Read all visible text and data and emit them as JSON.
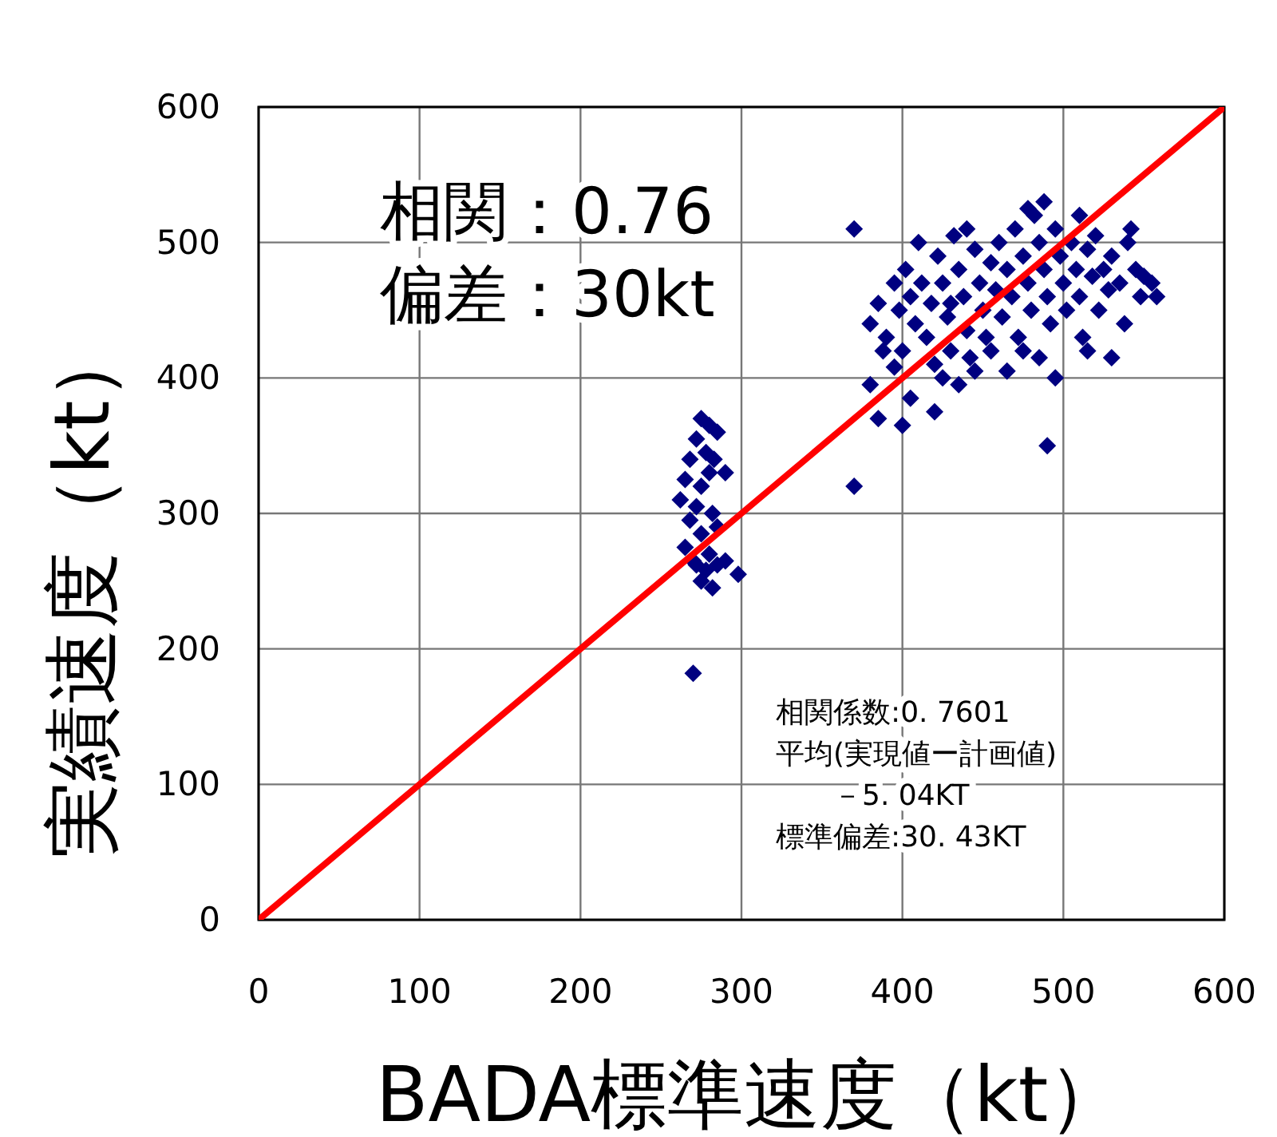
{
  "chart_data": {
    "type": "scatter",
    "xlabel": "BADA標準速度（kt）",
    "ylabel": "実績速度（kt）",
    "xlim": [
      0,
      600
    ],
    "ylim": [
      0,
      600
    ],
    "xticks": [
      0,
      100,
      200,
      300,
      400,
      500,
      600
    ],
    "yticks": [
      0,
      100,
      200,
      300,
      400,
      500,
      600
    ],
    "grid": true,
    "marker": "diamond",
    "annotations": [
      "相関：0.76",
      "偏差：30kt",
      "相関係数:0. 7601",
      "平均(実現値ー計画値)",
      "　　－5. 04KT",
      "標準偏差:30. 43KT"
    ],
    "series": [
      {
        "type": "scatter",
        "color": "#000080",
        "x": [
          270,
          275,
          280,
          272,
          285,
          268,
          278,
          283,
          265,
          275,
          280,
          290,
          262,
          272,
          282,
          268,
          285,
          275,
          265,
          280,
          272,
          278,
          285,
          290,
          275,
          282,
          298,
          270,
          370,
          370,
          385,
          400,
          490,
          405,
          380,
          420,
          380,
          385,
          390,
          395,
          398,
          400,
          402,
          405,
          408,
          410,
          412,
          415,
          418,
          420,
          395,
          388,
          422,
          425,
          428,
          430,
          432,
          435,
          438,
          440,
          442,
          445,
          448,
          450,
          452,
          455,
          458,
          460,
          425,
          435,
          445,
          455,
          440,
          430,
          462,
          465,
          468,
          470,
          472,
          475,
          478,
          480,
          482,
          485,
          488,
          490,
          492,
          495,
          498,
          500,
          465,
          475,
          485,
          495,
          488,
          478,
          502,
          505,
          508,
          510,
          512,
          515,
          518,
          520,
          522,
          525,
          528,
          530,
          535,
          538,
          540,
          545,
          548,
          550,
          555,
          558,
          530,
          515,
          542,
          510
        ],
        "values": [
          182,
          370,
          365,
          355,
          360,
          340,
          345,
          340,
          325,
          320,
          330,
          330,
          310,
          305,
          300,
          295,
          290,
          285,
          275,
          270,
          262,
          258,
          262,
          265,
          250,
          245,
          255,
          265,
          510,
          320,
          370,
          365,
          350,
          385,
          395,
          375,
          440,
          455,
          430,
          470,
          450,
          420,
          480,
          460,
          440,
          500,
          470,
          430,
          455,
          410,
          408,
          420,
          490,
          470,
          445,
          420,
          505,
          480,
          460,
          435,
          415,
          495,
          470,
          450,
          430,
          485,
          465,
          500,
          400,
          395,
          405,
          420,
          510,
          455,
          445,
          480,
          460,
          510,
          430,
          490,
          470,
          450,
          520,
          500,
          480,
          460,
          440,
          510,
          490,
          470,
          405,
          420,
          415,
          400,
          530,
          525,
          450,
          500,
          480,
          460,
          430,
          495,
          475,
          505,
          450,
          480,
          465,
          490,
          470,
          440,
          500,
          480,
          460,
          475,
          470,
          460,
          415,
          420,
          510,
          520
        ]
      },
      {
        "type": "line",
        "marker": "none",
        "color": "#ff0000",
        "x": [
          0,
          600
        ],
        "values": [
          0,
          600
        ]
      }
    ]
  }
}
